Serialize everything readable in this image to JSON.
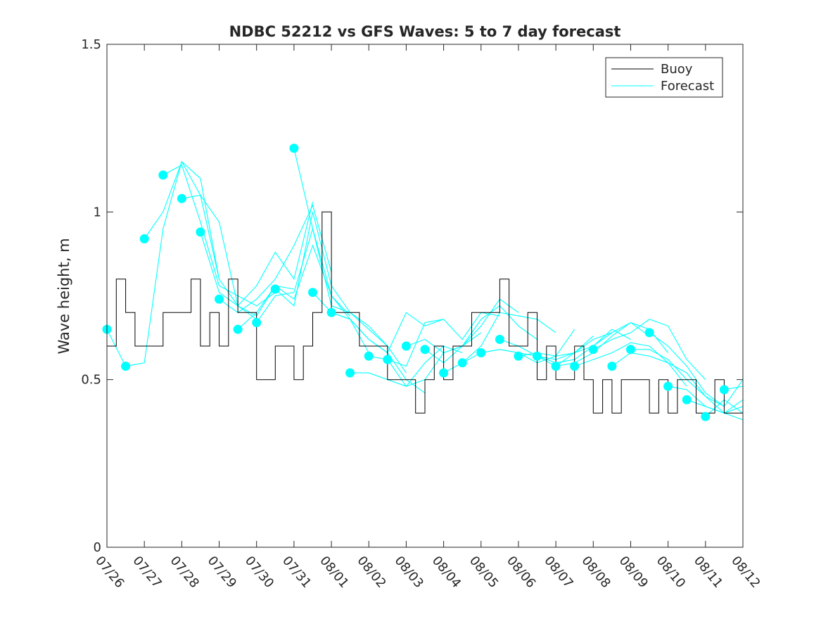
{
  "chart_data": {
    "type": "line",
    "title": "NDBC 52212 vs GFS Waves: 5 to 7 day forecast",
    "xlabel": "",
    "ylabel": "Wave height, m",
    "x_unit": "days (MM/DD)",
    "xlim": [
      "07/26",
      "08/12"
    ],
    "ylim": [
      0,
      1.5
    ],
    "x_ticks": [
      "07/26",
      "07/27",
      "07/28",
      "07/29",
      "07/30",
      "07/31",
      "08/01",
      "08/02",
      "08/03",
      "08/04",
      "08/05",
      "08/06",
      "08/07",
      "08/08",
      "08/09",
      "08/10",
      "08/11",
      "08/12"
    ],
    "y_ticks": [
      0,
      0.5,
      1,
      1.5
    ],
    "y_tick_labels": [
      "0",
      "0.5",
      "1",
      "1.5"
    ],
    "grid": false,
    "legend_position": "top-right",
    "legend": [
      "Buoy",
      "Forecast"
    ],
    "colors": {
      "buoy": "#000000",
      "forecast": "#00ffff",
      "axis": "#262626"
    },
    "buoy": {
      "name": "Buoy",
      "x": [
        "07/26 00:00",
        "07/26 06:00",
        "07/26 12:00",
        "07/26 18:00",
        "07/27 00:00",
        "07/27 06:00",
        "07/27 12:00",
        "07/27 18:00",
        "07/28 00:00",
        "07/28 06:00",
        "07/28 12:00",
        "07/28 18:00",
        "07/29 00:00",
        "07/29 06:00",
        "07/29 12:00",
        "07/29 18:00",
        "07/30 00:00",
        "07/30 06:00",
        "07/30 12:00",
        "07/30 18:00",
        "07/31 00:00",
        "07/31 06:00",
        "07/31 12:00",
        "07/31 18:00",
        "08/01 00:00",
        "08/01 06:00",
        "08/01 12:00",
        "08/01 18:00",
        "08/02 00:00",
        "08/02 06:00",
        "08/02 12:00",
        "08/02 18:00",
        "08/03 00:00",
        "08/03 06:00",
        "08/03 12:00",
        "08/03 18:00",
        "08/04 00:00",
        "08/04 06:00",
        "08/04 12:00",
        "08/04 18:00",
        "08/05 00:00",
        "08/05 06:00",
        "08/05 12:00",
        "08/05 18:00",
        "08/06 00:00",
        "08/06 06:00",
        "08/06 12:00",
        "08/06 18:00",
        "08/07 00:00",
        "08/07 06:00",
        "08/07 12:00",
        "08/07 18:00",
        "08/08 00:00",
        "08/08 06:00",
        "08/08 12:00",
        "08/08 18:00",
        "08/09 00:00",
        "08/09 06:00",
        "08/09 12:00",
        "08/09 18:00",
        "08/10 00:00",
        "08/10 06:00",
        "08/10 12:00",
        "08/10 18:00",
        "08/11 00:00",
        "08/11 06:00",
        "08/11 12:00",
        "08/11 18:00",
        "08/12 00:00"
      ],
      "values": [
        0.6,
        0.8,
        0.7,
        0.6,
        0.6,
        0.6,
        0.7,
        0.7,
        0.7,
        0.8,
        0.6,
        0.7,
        0.6,
        0.8,
        0.7,
        0.7,
        0.5,
        0.5,
        0.6,
        0.6,
        0.5,
        0.6,
        0.7,
        1.0,
        0.7,
        0.7,
        0.7,
        0.6,
        0.6,
        0.6,
        0.5,
        0.5,
        0.5,
        0.4,
        0.5,
        0.6,
        0.5,
        0.6,
        0.6,
        0.7,
        0.7,
        0.7,
        0.8,
        0.6,
        0.6,
        0.7,
        0.5,
        0.6,
        0.5,
        0.5,
        0.6,
        0.5,
        0.4,
        0.5,
        0.4,
        0.5,
        0.5,
        0.5,
        0.4,
        0.5,
        0.4,
        0.5,
        0.5,
        0.4,
        0.4,
        0.5,
        0.4,
        0.4,
        0.5
      ]
    },
    "forecast_series": [
      {
        "x": [
          "07/26 00:00",
          "07/26 12:00",
          "07/27 00:00",
          "07/27 12:00",
          "07/28 00:00",
          "07/28 12:00",
          "07/29 00:00"
        ],
        "values": [
          0.65,
          0.54,
          0.55,
          0.95,
          1.15,
          1.05,
          0.8
        ]
      },
      {
        "x": [
          "07/27 00:00",
          "07/27 12:00",
          "07/28 00:00",
          "07/28 12:00",
          "07/29 00:00",
          "07/29 12:00",
          "07/30 00:00"
        ],
        "values": [
          0.92,
          1.0,
          1.15,
          1.1,
          0.8,
          0.72,
          0.68
        ]
      },
      {
        "x": [
          "07/27 12:00",
          "07/28 00:00",
          "07/28 12:00",
          "07/29 00:00",
          "07/29 12:00",
          "07/30 00:00",
          "07/30 12:00"
        ],
        "values": [
          1.11,
          1.14,
          0.97,
          0.78,
          0.75,
          0.72,
          0.76
        ]
      },
      {
        "x": [
          "07/28 00:00",
          "07/28 12:00",
          "07/29 00:00",
          "07/29 12:00",
          "07/30 00:00",
          "07/30 12:00",
          "07/31 00:00"
        ],
        "values": [
          1.04,
          1.05,
          0.97,
          0.72,
          0.69,
          0.78,
          0.77
        ]
      },
      {
        "x": [
          "07/28 12:00",
          "07/29 00:00",
          "07/29 12:00",
          "07/30 00:00",
          "07/30 12:00",
          "07/31 00:00",
          "07/31 12:00"
        ],
        "values": [
          0.94,
          0.76,
          0.72,
          0.78,
          0.88,
          0.8,
          1.03
        ]
      },
      {
        "x": [
          "07/29 00:00",
          "07/29 12:00",
          "07/30 00:00",
          "07/30 12:00",
          "07/31 00:00",
          "07/31 12:00",
          "08/01 00:00"
        ],
        "values": [
          0.74,
          0.7,
          0.74,
          0.8,
          0.9,
          1.02,
          0.82
        ]
      },
      {
        "x": [
          "07/29 12:00",
          "07/30 00:00",
          "07/30 12:00",
          "07/31 00:00",
          "07/31 12:00",
          "08/01 00:00",
          "08/01 12:00"
        ],
        "values": [
          0.65,
          0.7,
          0.78,
          0.74,
          0.9,
          0.75,
          0.69
        ]
      },
      {
        "x": [
          "07/30 00:00",
          "07/30 12:00",
          "07/31 00:00",
          "07/31 12:00",
          "08/01 00:00",
          "08/01 12:00",
          "08/02 00:00"
        ],
        "values": [
          0.67,
          0.75,
          0.76,
          0.95,
          0.75,
          0.68,
          0.58
        ]
      },
      {
        "x": [
          "07/30 12:00",
          "07/31 00:00",
          "07/31 12:00",
          "08/01 00:00",
          "08/01 12:00",
          "08/02 00:00",
          "08/02 12:00"
        ],
        "values": [
          0.77,
          0.72,
          1.0,
          0.78,
          0.7,
          0.65,
          0.6
        ]
      },
      {
        "x": [
          "07/31 00:00",
          "07/31 12:00",
          "08/01 00:00",
          "08/01 12:00",
          "08/02 00:00",
          "08/02 12:00",
          "08/03 00:00"
        ],
        "values": [
          1.19,
          0.95,
          0.72,
          0.7,
          0.66,
          0.6,
          0.52
        ]
      },
      {
        "x": [
          "07/31 12:00",
          "08/01 00:00",
          "08/01 12:00",
          "08/02 00:00",
          "08/02 12:00",
          "08/03 00:00",
          "08/03 12:00"
        ],
        "values": [
          0.76,
          0.7,
          0.68,
          0.62,
          0.58,
          0.5,
          0.46
        ]
      },
      {
        "x": [
          "08/01 00:00",
          "08/01 12:00",
          "08/02 00:00",
          "08/02 12:00",
          "08/03 00:00",
          "08/03 12:00",
          "08/04 00:00"
        ],
        "values": [
          0.7,
          0.68,
          0.62,
          0.58,
          0.7,
          0.66,
          0.68
        ]
      },
      {
        "x": [
          "08/01 12:00",
          "08/02 00:00",
          "08/02 12:00",
          "08/03 00:00",
          "08/03 12:00",
          "08/04 00:00",
          "08/04 12:00"
        ],
        "values": [
          0.52,
          0.52,
          0.5,
          0.48,
          0.55,
          0.6,
          0.58
        ]
      },
      {
        "x": [
          "08/02 00:00",
          "08/02 12:00",
          "08/03 00:00",
          "08/03 12:00",
          "08/04 00:00",
          "08/04 12:00",
          "08/05 00:00"
        ],
        "values": [
          0.57,
          0.56,
          0.48,
          0.5,
          0.58,
          0.6,
          0.64
        ]
      },
      {
        "x": [
          "08/02 12:00",
          "08/03 00:00",
          "08/03 12:00",
          "08/04 00:00",
          "08/04 12:00",
          "08/05 00:00",
          "08/05 12:00"
        ],
        "values": [
          0.56,
          0.54,
          0.67,
          0.68,
          0.62,
          0.7,
          0.69
        ]
      },
      {
        "x": [
          "08/03 00:00",
          "08/03 12:00",
          "08/04 00:00",
          "08/04 12:00",
          "08/05 00:00",
          "08/05 12:00",
          "08/06 00:00"
        ],
        "values": [
          0.6,
          0.62,
          0.58,
          0.6,
          0.66,
          0.74,
          0.7
        ]
      },
      {
        "x": [
          "08/03 12:00",
          "08/04 00:00",
          "08/04 12:00",
          "08/05 00:00",
          "08/05 12:00",
          "08/06 00:00",
          "08/06 12:00"
        ],
        "values": [
          0.59,
          0.55,
          0.6,
          0.68,
          0.72,
          0.66,
          0.62
        ]
      },
      {
        "x": [
          "08/04 00:00",
          "08/04 12:00",
          "08/05 00:00",
          "08/05 12:00",
          "08/06 00:00",
          "08/06 12:00",
          "08/07 00:00"
        ],
        "values": [
          0.52,
          0.55,
          0.6,
          0.7,
          0.69,
          0.68,
          0.64
        ]
      },
      {
        "x": [
          "08/04 12:00",
          "08/05 00:00",
          "08/05 12:00",
          "08/06 00:00",
          "08/06 12:00",
          "08/07 00:00",
          "08/07 12:00"
        ],
        "values": [
          0.55,
          0.58,
          0.59,
          0.58,
          0.55,
          0.57,
          0.65
        ]
      },
      {
        "x": [
          "08/05 00:00",
          "08/05 12:00",
          "08/06 00:00",
          "08/06 12:00",
          "08/07 00:00",
          "08/07 12:00",
          "08/08 00:00"
        ],
        "values": [
          0.58,
          0.59,
          0.58,
          0.57,
          0.54,
          0.58,
          0.63
        ]
      },
      {
        "x": [
          "08/05 12:00",
          "08/06 00:00",
          "08/06 12:00",
          "08/07 00:00",
          "08/07 12:00",
          "08/08 00:00",
          "08/08 12:00"
        ],
        "values": [
          0.62,
          0.6,
          0.57,
          0.56,
          0.58,
          0.62,
          0.64
        ]
      },
      {
        "x": [
          "08/06 00:00",
          "08/06 12:00",
          "08/07 00:00",
          "08/07 12:00",
          "08/08 00:00",
          "08/08 12:00",
          "08/09 00:00"
        ],
        "values": [
          0.57,
          0.58,
          0.57,
          0.58,
          0.6,
          0.65,
          0.62
        ]
      },
      {
        "x": [
          "08/06 12:00",
          "08/07 00:00",
          "08/07 12:00",
          "08/08 00:00",
          "08/08 12:00",
          "08/09 00:00",
          "08/09 12:00"
        ],
        "values": [
          0.57,
          0.55,
          0.56,
          0.6,
          0.64,
          0.67,
          0.63
        ]
      },
      {
        "x": [
          "08/07 00:00",
          "08/07 12:00",
          "08/08 00:00",
          "08/08 12:00",
          "08/09 00:00",
          "08/09 12:00",
          "08/10 00:00"
        ],
        "values": [
          0.54,
          0.55,
          0.58,
          0.63,
          0.67,
          0.65,
          0.58
        ]
      },
      {
        "x": [
          "08/07 12:00",
          "08/08 00:00",
          "08/08 12:00",
          "08/09 00:00",
          "08/09 12:00",
          "08/10 00:00",
          "08/10 12:00"
        ],
        "values": [
          0.54,
          0.56,
          0.58,
          0.61,
          0.6,
          0.55,
          0.48
        ]
      },
      {
        "x": [
          "08/08 00:00",
          "08/08 12:00",
          "08/09 00:00",
          "08/09 12:00",
          "08/10 00:00",
          "08/10 12:00",
          "08/11 00:00"
        ],
        "values": [
          0.59,
          0.62,
          0.64,
          0.68,
          0.66,
          0.56,
          0.5
        ]
      },
      {
        "x": [
          "08/08 12:00",
          "08/09 00:00",
          "08/09 12:00",
          "08/10 00:00",
          "08/10 12:00",
          "08/11 00:00",
          "08/11 12:00"
        ],
        "values": [
          0.54,
          0.58,
          0.57,
          0.55,
          0.52,
          0.45,
          0.42
        ]
      },
      {
        "x": [
          "08/09 00:00",
          "08/09 12:00",
          "08/10 00:00",
          "08/10 12:00",
          "08/11 00:00",
          "08/11 12:00",
          "08/12 00:00"
        ],
        "values": [
          0.59,
          0.59,
          0.56,
          0.5,
          0.45,
          0.4,
          0.38
        ]
      },
      {
        "x": [
          "08/09 12:00",
          "08/10 00:00",
          "08/10 12:00",
          "08/11 00:00",
          "08/11 12:00",
          "08/12 00:00"
        ],
        "values": [
          0.64,
          0.6,
          0.54,
          0.46,
          0.42,
          0.5
        ]
      },
      {
        "x": [
          "08/10 00:00",
          "08/10 12:00",
          "08/11 00:00",
          "08/11 12:00",
          "08/12 00:00"
        ],
        "values": [
          0.48,
          0.47,
          0.42,
          0.4,
          0.44
        ]
      },
      {
        "x": [
          "08/10 12:00",
          "08/11 00:00",
          "08/11 12:00",
          "08/12 00:00"
        ],
        "values": [
          0.44,
          0.42,
          0.4,
          0.42
        ]
      },
      {
        "x": [
          "08/11 00:00",
          "08/11 12:00",
          "08/12 00:00"
        ],
        "values": [
          0.39,
          0.44,
          0.4
        ]
      },
      {
        "x": [
          "08/11 12:00",
          "08/12 00:00"
        ],
        "values": [
          0.47,
          0.48
        ]
      }
    ],
    "forecast_start_points": {
      "x": [
        "07/26 00:00",
        "07/26 12:00",
        "07/27 00:00",
        "07/27 12:00",
        "07/28 00:00",
        "07/28 12:00",
        "07/29 00:00",
        "07/29 12:00",
        "07/30 00:00",
        "07/30 12:00",
        "07/31 00:00",
        "07/31 12:00",
        "08/01 00:00",
        "08/01 12:00",
        "08/02 00:00",
        "08/02 12:00",
        "08/03 00:00",
        "08/03 12:00",
        "08/04 00:00",
        "08/04 12:00",
        "08/05 00:00",
        "08/05 12:00",
        "08/06 00:00",
        "08/06 12:00",
        "08/07 00:00",
        "08/07 12:00",
        "08/08 00:00",
        "08/08 12:00",
        "08/09 00:00",
        "08/09 12:00",
        "08/10 00:00",
        "08/10 12:00",
        "08/11 00:00",
        "08/11 12:00"
      ],
      "values": [
        0.65,
        0.54,
        0.92,
        1.11,
        1.04,
        0.94,
        0.74,
        0.65,
        0.67,
        0.77,
        1.19,
        0.76,
        0.7,
        0.52,
        0.57,
        0.56,
        0.6,
        0.59,
        0.52,
        0.55,
        0.58,
        0.62,
        0.57,
        0.57,
        0.54,
        0.54,
        0.59,
        0.54,
        0.59,
        0.64,
        0.48,
        0.44,
        0.39,
        0.47
      ]
    }
  }
}
